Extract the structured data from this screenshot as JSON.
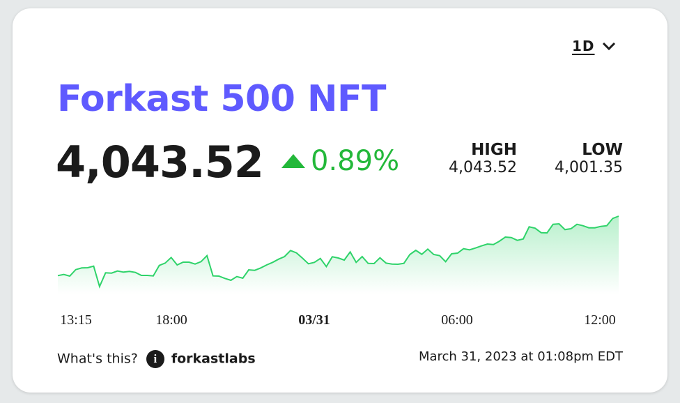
{
  "range_selector": {
    "value": "1D",
    "icon": "chevron-down-icon"
  },
  "title": "Forkast 500 NFT",
  "price": "4,043.52",
  "change": {
    "value": "0.89%",
    "direction": "up",
    "color": "#23b83a"
  },
  "high": {
    "label": "HIGH",
    "value": "4,043.52"
  },
  "low": {
    "label": "LOW",
    "value": "4,001.35"
  },
  "footer": {
    "whats_this": "What's this?",
    "brand": "forkastlabs",
    "timestamp": "March 31, 2023 at 01:08pm EDT"
  },
  "colors": {
    "title": "#5f5aff",
    "line": "#2fd36a",
    "fill": "#b8f0cc"
  },
  "chart_data": {
    "type": "area",
    "x_tick_labels": [
      "13:15",
      "18:00",
      "03/31",
      "06:00",
      "12:00"
    ],
    "ylim": [
      4001.35,
      4043.52
    ],
    "grid": false,
    "values": [
      4007.89,
      4008.59,
      4007.61,
      4011.51,
      4012.48,
      4012.62,
      4013.6,
      4001.35,
      4009.56,
      4009.42,
      4010.67,
      4009.98,
      4010.4,
      4009.84,
      4008.03,
      4008.03,
      4007.75,
      4014.01,
      4015.41,
      4018.75,
      4014.29,
      4015.96,
      4015.96,
      4014.85,
      4016.24,
      4019.86,
      4007.75,
      4007.61,
      4006.22,
      4005.11,
      4007.33,
      4006.36,
      4011.37,
      4011.09,
      4012.48,
      4014.29,
      4015.82,
      4017.77,
      4019.3,
      4022.92,
      4021.53,
      4018.33,
      4014.99,
      4015.82,
      4018.19,
      4013.32,
      4019.16,
      4018.47,
      4017.22,
      4022.09,
      4015.82,
      4019.3,
      4015.27,
      4015.13,
      4018.61,
      4015.41,
      4014.85,
      4014.71,
      4015.27,
      4020.56,
      4023.06,
      4020.69,
      4023.76,
      4020.56,
      4019.86,
      4016.24,
      4020.97,
      4021.39,
      4024.03,
      4023.34,
      4024.45,
      4025.7,
      4026.82,
      4026.54,
      4028.49,
      4030.99,
      4030.71,
      4029.04,
      4029.88,
      4037.12,
      4036.28,
      4033.64,
      4033.5,
      4038.65,
      4038.93,
      4035.45,
      4036.0,
      4038.65,
      4037.81,
      4036.56,
      4036.56,
      4037.39,
      4037.81,
      4042.13,
      4043.52
    ]
  }
}
